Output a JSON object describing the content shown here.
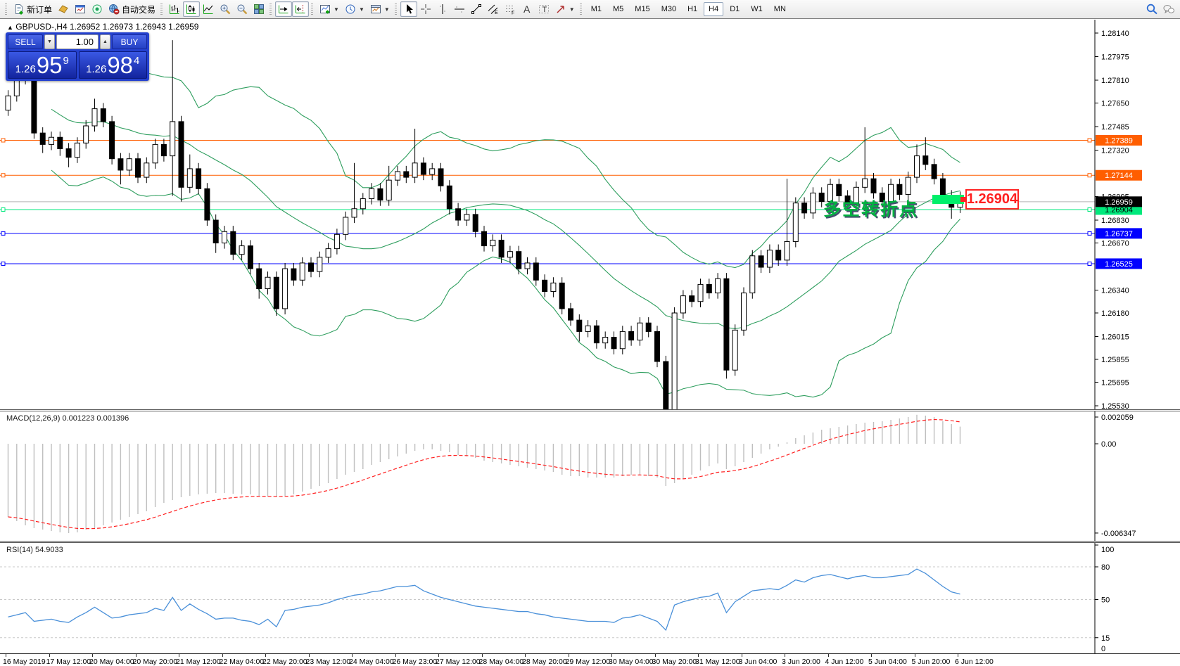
{
  "toolbar": {
    "new_order_label": "新订单",
    "autotrading_label": "自动交易",
    "timeframes": [
      "M1",
      "M5",
      "M15",
      "M30",
      "H1",
      "H4",
      "D1",
      "W1",
      "MN"
    ],
    "active_timeframe": "H4",
    "buttons": [
      {
        "sep": true
      },
      {
        "icon": "new-order",
        "label": "新订单"
      },
      {
        "icon": "chart-profiles"
      },
      {
        "icon": "market-watch"
      },
      {
        "icon": "signals"
      },
      {
        "icon": "autotrading",
        "label": "自动交易"
      },
      {
        "sep": true
      },
      {
        "icon": "bar-chart"
      },
      {
        "icon": "candlestick-chart",
        "pressed": true
      },
      {
        "icon": "line-chart"
      },
      {
        "icon": "zoom-in"
      },
      {
        "icon": "zoom-out"
      },
      {
        "icon": "tile-windows"
      },
      {
        "sep": true
      },
      {
        "icon": "auto-scroll",
        "pressed": true
      },
      {
        "icon": "chart-shift",
        "pressed": true
      },
      {
        "sep": true
      },
      {
        "icon": "indicators",
        "dropdown": true
      },
      {
        "icon": "periods",
        "dropdown": true
      },
      {
        "icon": "templates",
        "dropdown": true
      },
      {
        "sep": true
      },
      {
        "icon": "cursor",
        "pressed": true
      },
      {
        "icon": "crosshair"
      },
      {
        "icon": "vertical-line"
      },
      {
        "icon": "horizontal-line"
      },
      {
        "icon": "trendline"
      },
      {
        "icon": "equidistant-channel"
      },
      {
        "icon": "fibonacci"
      },
      {
        "icon": "text"
      },
      {
        "icon": "text-label"
      },
      {
        "icon": "arrows",
        "dropdown": true
      },
      {
        "sep": true
      },
      {
        "tf": true
      },
      {
        "spacer": true
      },
      {
        "icon": "search"
      },
      {
        "icon": "chat"
      }
    ]
  },
  "chart": {
    "collapse_arrow": "▲",
    "title_symbol": "GBPUSD-,H4",
    "title_ohlc": "1.26952 1.26973 1.26943 1.26959",
    "trade_panel": {
      "sell_label": "SELL",
      "buy_label": "BUY",
      "volume": "1.00",
      "sell_small": "1.26",
      "sell_big": "95",
      "sell_sup": "9",
      "buy_small": "1.26",
      "buy_big": "98",
      "buy_sup": "4"
    },
    "annotation": {
      "text": "多空转折点",
      "price_tag": "1.26904"
    },
    "macd_label": "MACD(12,26,9) 0.001223 0.001396",
    "rsi_label": "RSI(14) 54.9033"
  },
  "chart_data": {
    "type": "candlestick",
    "symbol": "GBPUSD",
    "period": "H4",
    "price_axis": {
      "min": 1.2553,
      "max": 1.2814,
      "ticks": [
        "1.28140",
        "1.27975",
        "1.27810",
        "1.27650",
        "1.27485",
        "1.27320",
        "1.26995",
        "1.26830",
        "1.26670",
        "1.26340",
        "1.26180",
        "1.26015",
        "1.25855",
        "1.25695",
        "1.25530"
      ]
    },
    "current_bid": "1.26959",
    "hlines": [
      {
        "price": 1.27389,
        "label": "1.27389",
        "color": "#ff5e00",
        "text_color": "#ffffff"
      },
      {
        "price": 1.27144,
        "label": "1.27144",
        "color": "#ff5e00",
        "text_color": "#ffffff"
      },
      {
        "price": 1.26904,
        "label": "1.26904",
        "color": "#00e97c",
        "text_color": "#000000"
      },
      {
        "price": 1.26737,
        "label": "1.26737",
        "color": "#0000ff",
        "text_color": "#ffffff"
      },
      {
        "price": 1.26525,
        "label": "1.26525",
        "color": "#0000ff",
        "text_color": "#ffffff"
      }
    ],
    "bollinger": {
      "period": 20,
      "deviation": 2,
      "color": "#2e9e5e"
    },
    "ohlc": [
      [
        1.276,
        1.2774,
        1.2756,
        1.277
      ],
      [
        1.277,
        1.2786,
        1.2766,
        1.2782
      ],
      [
        1.2782,
        1.2795,
        1.2778,
        1.2791
      ],
      [
        1.2791,
        1.28,
        1.274,
        1.2744
      ],
      [
        1.2744,
        1.2748,
        1.273,
        1.2736
      ],
      [
        1.2736,
        1.2745,
        1.2732,
        1.2741
      ],
      [
        1.2741,
        1.2745,
        1.2728,
        1.2733
      ],
      [
        1.2733,
        1.2737,
        1.272,
        1.2727
      ],
      [
        1.2727,
        1.2741,
        1.2723,
        1.2737
      ],
      [
        1.2737,
        1.2753,
        1.2733,
        1.2749
      ],
      [
        1.2749,
        1.2768,
        1.2745,
        1.2761
      ],
      [
        1.2761,
        1.2765,
        1.2748,
        1.2752
      ],
      [
        1.2752,
        1.2756,
        1.2722,
        1.2726
      ],
      [
        1.2726,
        1.273,
        1.2708,
        1.2718
      ],
      [
        1.2718,
        1.273,
        1.2714,
        1.2726
      ],
      [
        1.2726,
        1.273,
        1.2709,
        1.2713
      ],
      [
        1.2713,
        1.2727,
        1.2709,
        1.2723
      ],
      [
        1.2723,
        1.274,
        1.2719,
        1.2736
      ],
      [
        1.2736,
        1.274,
        1.2724,
        1.2728
      ],
      [
        1.2728,
        1.2809,
        1.27,
        1.2752
      ],
      [
        1.2752,
        1.2756,
        1.2696,
        1.2706
      ],
      [
        1.2706,
        1.2729,
        1.2702,
        1.2719
      ],
      [
        1.2719,
        1.2723,
        1.2701,
        1.2705
      ],
      [
        1.2705,
        1.2709,
        1.2679,
        1.2683
      ],
      [
        1.2683,
        1.2687,
        1.266,
        1.2667
      ],
      [
        1.2667,
        1.2679,
        1.2663,
        1.2675
      ],
      [
        1.2675,
        1.2679,
        1.2655,
        1.2659
      ],
      [
        1.2659,
        1.2669,
        1.2655,
        1.2665
      ],
      [
        1.2665,
        1.2669,
        1.2645,
        1.2649
      ],
      [
        1.2649,
        1.2653,
        1.2628,
        1.2635
      ],
      [
        1.2635,
        1.2647,
        1.2631,
        1.2643
      ],
      [
        1.2643,
        1.2647,
        1.2616,
        1.2621
      ],
      [
        1.2621,
        1.2653,
        1.2617,
        1.2649
      ],
      [
        1.2649,
        1.2653,
        1.2637,
        1.2641
      ],
      [
        1.2641,
        1.2657,
        1.2637,
        1.2653
      ],
      [
        1.2653,
        1.2657,
        1.2643,
        1.2647
      ],
      [
        1.2647,
        1.2661,
        1.2643,
        1.2657
      ],
      [
        1.2657,
        1.2667,
        1.2653,
        1.2663
      ],
      [
        1.2663,
        1.2677,
        1.2659,
        1.2673
      ],
      [
        1.2673,
        1.2689,
        1.2669,
        1.2685
      ],
      [
        1.2685,
        1.2723,
        1.2681,
        1.2691
      ],
      [
        1.2691,
        1.2702,
        1.2687,
        1.2698
      ],
      [
        1.2698,
        1.2709,
        1.2694,
        1.2705
      ],
      [
        1.2705,
        1.2709,
        1.2693,
        1.2697
      ],
      [
        1.2697,
        1.2721,
        1.2693,
        1.2711
      ],
      [
        1.2711,
        1.2721,
        1.2707,
        1.2717
      ],
      [
        1.2717,
        1.2721,
        1.2709,
        1.2713
      ],
      [
        1.2713,
        1.2747,
        1.2709,
        1.2723
      ],
      [
        1.2723,
        1.2727,
        1.2711,
        1.2715
      ],
      [
        1.2715,
        1.2723,
        1.2711,
        1.2719
      ],
      [
        1.2719,
        1.2723,
        1.2703,
        1.2707
      ],
      [
        1.2707,
        1.2711,
        1.2687,
        1.2691
      ],
      [
        1.2691,
        1.2695,
        1.2679,
        1.2683
      ],
      [
        1.2683,
        1.2691,
        1.2679,
        1.2687
      ],
      [
        1.2687,
        1.2691,
        1.2671,
        1.2675
      ],
      [
        1.2675,
        1.2679,
        1.2661,
        1.2665
      ],
      [
        1.2665,
        1.2673,
        1.2661,
        1.2669
      ],
      [
        1.2669,
        1.2673,
        1.2653,
        1.2657
      ],
      [
        1.2657,
        1.2665,
        1.2653,
        1.2661
      ],
      [
        1.2661,
        1.2665,
        1.2645,
        1.2649
      ],
      [
        1.2649,
        1.2657,
        1.2645,
        1.2653
      ],
      [
        1.2653,
        1.2657,
        1.2637,
        1.2641
      ],
      [
        1.2641,
        1.2645,
        1.2629,
        1.2633
      ],
      [
        1.2633,
        1.2643,
        1.2629,
        1.2639
      ],
      [
        1.2639,
        1.2643,
        1.2617,
        1.2621
      ],
      [
        1.2621,
        1.2625,
        1.2609,
        1.2613
      ],
      [
        1.2613,
        1.2617,
        1.2598,
        1.2605
      ],
      [
        1.2605,
        1.2613,
        1.2601,
        1.2609
      ],
      [
        1.2609,
        1.2613,
        1.2593,
        1.2597
      ],
      [
        1.2597,
        1.2605,
        1.2593,
        1.2601
      ],
      [
        1.2601,
        1.2605,
        1.2589,
        1.2593
      ],
      [
        1.2593,
        1.2609,
        1.2589,
        1.2605
      ],
      [
        1.2605,
        1.2609,
        1.2595,
        1.2599
      ],
      [
        1.2599,
        1.2615,
        1.2595,
        1.2611
      ],
      [
        1.2611,
        1.2615,
        1.2601,
        1.2605
      ],
      [
        1.2605,
        1.2609,
        1.258,
        1.2584
      ],
      [
        1.2584,
        1.2588,
        1.2541,
        1.2548
      ],
      [
        1.2548,
        1.2622,
        1.2544,
        1.2618
      ],
      [
        1.2618,
        1.2634,
        1.2614,
        1.263
      ],
      [
        1.263,
        1.2634,
        1.2622,
        1.2626
      ],
      [
        1.2626,
        1.2642,
        1.2622,
        1.2638
      ],
      [
        1.2638,
        1.2642,
        1.2628,
        1.2632
      ],
      [
        1.2632,
        1.2646,
        1.2628,
        1.2642
      ],
      [
        1.2642,
        1.2646,
        1.2572,
        1.2578
      ],
      [
        1.2578,
        1.261,
        1.2574,
        1.2606
      ],
      [
        1.2606,
        1.2636,
        1.2602,
        1.2632
      ],
      [
        1.2632,
        1.2662,
        1.2628,
        1.2658
      ],
      [
        1.2658,
        1.2662,
        1.2646,
        1.265
      ],
      [
        1.265,
        1.2666,
        1.2646,
        1.2662
      ],
      [
        1.2662,
        1.2666,
        1.2651,
        1.2655
      ],
      [
        1.2655,
        1.2712,
        1.2651,
        1.2668
      ],
      [
        1.2668,
        1.2699,
        1.2664,
        1.2695
      ],
      [
        1.2695,
        1.2699,
        1.2684,
        1.2688
      ],
      [
        1.2688,
        1.2706,
        1.2684,
        1.2702
      ],
      [
        1.2702,
        1.2706,
        1.2692,
        1.2696
      ],
      [
        1.2696,
        1.2712,
        1.2692,
        1.2708
      ],
      [
        1.2708,
        1.2712,
        1.2696,
        1.27
      ],
      [
        1.27,
        1.2704,
        1.269,
        1.2694
      ],
      [
        1.2694,
        1.271,
        1.269,
        1.2706
      ],
      [
        1.2706,
        1.2748,
        1.2702,
        1.2712
      ],
      [
        1.2712,
        1.2716,
        1.2698,
        1.2702
      ],
      [
        1.2702,
        1.2706,
        1.2692,
        1.2696
      ],
      [
        1.2696,
        1.2712,
        1.2692,
        1.2708
      ],
      [
        1.2708,
        1.2712,
        1.2697,
        1.2701
      ],
      [
        1.2701,
        1.2717,
        1.2697,
        1.2713
      ],
      [
        1.2713,
        1.2736,
        1.2709,
        1.2728
      ],
      [
        1.2728,
        1.2741,
        1.2718,
        1.2722
      ],
      [
        1.2722,
        1.2726,
        1.2708,
        1.2712
      ],
      [
        1.2712,
        1.2716,
        1.2696,
        1.27
      ],
      [
        1.27,
        1.2704,
        1.2684,
        1.2692
      ],
      [
        1.2692,
        1.2703,
        1.2688,
        1.2696
      ]
    ],
    "macd": {
      "params": "12,26,9",
      "value_main": "0.001223",
      "value_signal": "0.001396",
      "hist_color": "#bfbfbf",
      "signal_color": "#ff2020",
      "ticks": [
        {
          "label": "0.002059",
          "value": 0.002059
        },
        {
          "label": "0.00",
          "value": 0
        },
        {
          "label": "-0.006347",
          "value": -0.006347
        }
      ],
      "main": [
        -0.0052,
        -0.0055,
        -0.0058,
        -0.006,
        -0.0061,
        -0.0062,
        -0.0063,
        -0.00635,
        -0.0063,
        -0.0061,
        -0.006,
        -0.0058,
        -0.0056,
        -0.0054,
        -0.0052,
        -0.005,
        -0.0048,
        -0.0045,
        -0.0042,
        -0.004,
        -0.0038,
        -0.0037,
        -0.0036,
        -0.00355,
        -0.0035,
        -0.0035,
        -0.00355,
        -0.0036,
        -0.0036,
        -0.0037,
        -0.00375,
        -0.0038,
        -0.0037,
        -0.0036,
        -0.0034,
        -0.0032,
        -0.003,
        -0.0028,
        -0.0025,
        -0.0022,
        -0.002,
        -0.0018,
        -0.0015,
        -0.0013,
        -0.0011,
        -0.0009,
        -0.0007,
        -0.0005,
        -0.0004,
        -0.0004,
        -0.0005,
        -0.0006,
        -0.0008,
        -0.0009,
        -0.001,
        -0.0012,
        -0.0013,
        -0.0014,
        -0.0015,
        -0.0016,
        -0.0017,
        -0.0018,
        -0.0019,
        -0.002,
        -0.0022,
        -0.0023,
        -0.0023,
        -0.0024,
        -0.0024,
        -0.0024,
        -0.0024,
        -0.0023,
        -0.0022,
        -0.0022,
        -0.0023,
        -0.0024,
        -0.003,
        -0.0028,
        -0.0025,
        -0.0022,
        -0.0019,
        -0.0016,
        -0.0014,
        -0.0018,
        -0.0016,
        -0.0013,
        -0.001,
        -0.0007,
        -0.0004,
        -0.0002,
        0.0001,
        0.0004,
        0.0006,
        0.0008,
        0.001,
        0.0011,
        0.0012,
        0.0013,
        0.0014,
        0.0015,
        0.00155,
        0.0016,
        0.0017,
        0.0018,
        0.0019,
        0.00206,
        0.002,
        0.0019,
        0.0016,
        0.0014,
        0.00122
      ]
    },
    "rsi": {
      "period": 14,
      "current": "54.9033",
      "color": "#4a90d9",
      "levels": [
        80,
        50,
        15
      ],
      "ticks": [
        {
          "label": "100",
          "value": 100
        },
        {
          "label": "80",
          "value": 80
        },
        {
          "label": "50",
          "value": 50
        },
        {
          "label": "15",
          "value": 15
        },
        {
          "label": "0",
          "value": 0
        }
      ],
      "series": [
        34,
        36,
        38,
        30,
        31,
        32,
        30,
        29,
        34,
        38,
        43,
        38,
        33,
        34,
        36,
        37,
        38,
        42,
        40,
        52,
        40,
        46,
        41,
        37,
        32,
        33,
        33,
        31,
        30,
        27,
        32,
        25,
        40,
        41,
        43,
        44,
        45,
        47,
        50,
        52,
        54,
        55,
        57,
        58,
        60,
        62,
        62,
        63,
        58,
        55,
        52,
        50,
        48,
        46,
        44,
        43,
        42,
        41,
        40,
        39,
        39,
        37,
        36,
        34,
        33,
        32,
        31,
        30,
        30,
        30,
        29,
        33,
        34,
        36,
        33,
        30,
        22,
        45,
        48,
        50,
        52,
        53,
        56,
        38,
        48,
        53,
        58,
        59,
        60,
        59,
        63,
        68,
        66,
        70,
        72,
        73,
        71,
        69,
        71,
        72,
        70,
        70,
        71,
        72,
        73,
        78,
        74,
        68,
        62,
        57,
        55
      ]
    },
    "time_labels": [
      "16 May 2019",
      "17 May 12:00",
      "20 May 04:00",
      "20 May 20:00",
      "21 May 12:00",
      "22 May 04:00",
      "22 May 20:00",
      "23 May 12:00",
      "24 May 04:00",
      "26 May 23:00",
      "27 May 12:00",
      "28 May 04:00",
      "28 May 20:00",
      "29 May 12:00",
      "30 May 04:00",
      "30 May 20:00",
      "31 May 12:00",
      "3 Jun 04:00",
      "3 Jun 20:00",
      "4 Jun 12:00",
      "5 Jun 04:00",
      "5 Jun 20:00",
      "6 Jun 12:00"
    ]
  }
}
